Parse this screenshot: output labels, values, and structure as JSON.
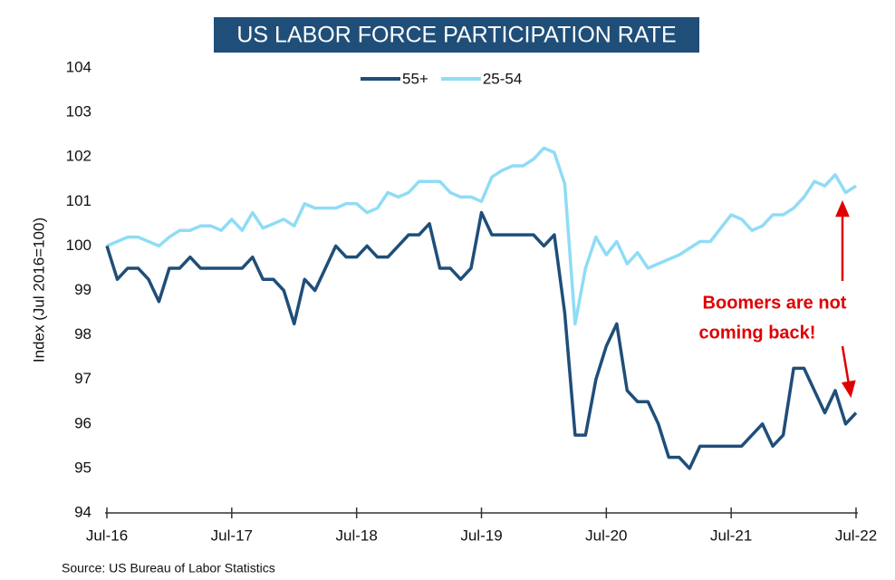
{
  "chart_data": {
    "type": "line",
    "title": "US LABOR FORCE PARTICIPATION RATE",
    "y_label": "Index (Jul 2016=100)",
    "source": "Source: US Bureau of Labor Statistics",
    "annotation": [
      "Boomers are not",
      "coming back!"
    ],
    "annotation_color": "#e00000",
    "categories": [
      "Jul-16",
      null,
      null,
      null,
      null,
      null,
      null,
      null,
      null,
      null,
      null,
      null,
      "Jul-17",
      null,
      null,
      null,
      null,
      null,
      null,
      null,
      null,
      null,
      null,
      null,
      "Jul-18",
      null,
      null,
      null,
      null,
      null,
      null,
      null,
      null,
      null,
      null,
      null,
      "Jul-19",
      null,
      null,
      null,
      null,
      null,
      null,
      null,
      null,
      null,
      null,
      null,
      "Jul-20",
      null,
      null,
      null,
      null,
      null,
      null,
      null,
      null,
      null,
      null,
      null,
      "Jul-21",
      null,
      null,
      null,
      null,
      null,
      null,
      null,
      null,
      null,
      null,
      null,
      "Jul-22"
    ],
    "series": [
      {
        "name": "55+",
        "color": "#1f4e79",
        "values": [
          100,
          99.25,
          99.5,
          99.5,
          99.25,
          98.75,
          99.5,
          99.5,
          99.75,
          99.5,
          99.5,
          99.5,
          99.5,
          99.5,
          99.75,
          99.25,
          99.25,
          99.0,
          98.25,
          99.25,
          99.0,
          99.5,
          100,
          99.75,
          99.75,
          100,
          99.75,
          99.75,
          100,
          100.25,
          100.25,
          100.5,
          99.5,
          99.5,
          99.25,
          99.5,
          100.75,
          100.25,
          100.25,
          100.25,
          100.25,
          100.25,
          100,
          100.25,
          98.5,
          95.75,
          95.75,
          97,
          97.75,
          98.25,
          96.75,
          96.5,
          96.5,
          96,
          95.25,
          95.25,
          95,
          95.5,
          95.5,
          95.5,
          95.5,
          95.5,
          95.75,
          96,
          95.5,
          95.75,
          97.25,
          97.25,
          96.75,
          96.25,
          96.75,
          96,
          96.25
        ]
      },
      {
        "name": "25-54",
        "color": "#8fdcf5",
        "values": [
          100,
          100.1,
          100.2,
          100.2,
          100.1,
          100.0,
          100.2,
          100.35,
          100.35,
          100.45,
          100.45,
          100.35,
          100.6,
          100.35,
          100.75,
          100.4,
          100.5,
          100.6,
          100.45,
          100.95,
          100.85,
          100.85,
          100.85,
          100.95,
          100.95,
          100.75,
          100.85,
          101.2,
          101.1,
          101.2,
          101.45,
          101.45,
          101.45,
          101.2,
          101.1,
          101.1,
          101.0,
          101.55,
          101.7,
          101.8,
          101.8,
          101.95,
          102.2,
          102.1,
          101.4,
          98.25,
          99.5,
          100.2,
          99.8,
          100.1,
          99.6,
          99.85,
          99.5,
          99.6,
          99.7,
          99.8,
          99.95,
          100.1,
          100.1,
          100.4,
          100.7,
          100.6,
          100.35,
          100.45,
          100.7,
          100.7,
          100.85,
          101.1,
          101.45,
          101.35,
          101.6,
          101.2,
          101.35
        ]
      }
    ],
    "ylim": [
      94,
      104
    ],
    "yticks": [
      94,
      95,
      96,
      97,
      98,
      99,
      100,
      101,
      102,
      103,
      104
    ],
    "grid": false
  }
}
